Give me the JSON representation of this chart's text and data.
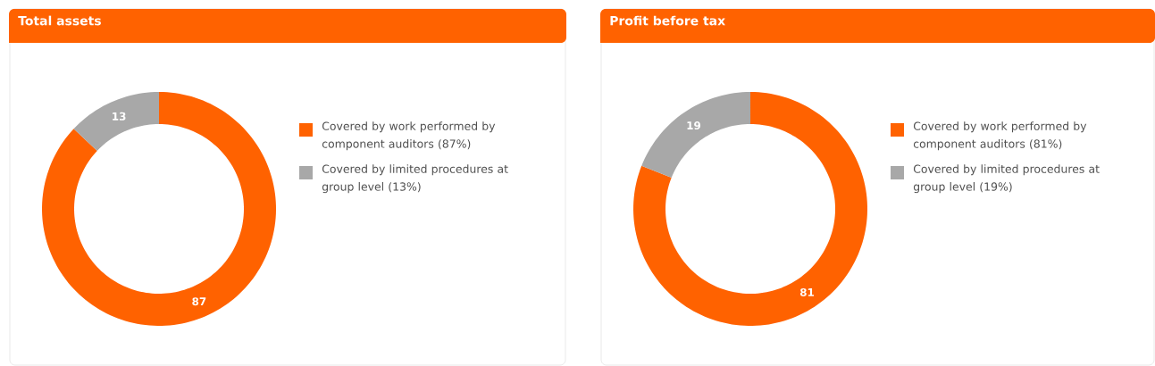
{
  "chart_data": [
    {
      "type": "donut",
      "title": "Total assets",
      "categories": [
        "Covered by work performed by component auditors (87%)",
        "Covered by limited procedures at group level (13%)"
      ],
      "values": [
        87,
        13
      ],
      "colors": [
        "#ff6200",
        "#a8a8a8"
      ],
      "data_labels": true,
      "legend": "right"
    },
    {
      "type": "donut",
      "title": "Profit before tax",
      "categories": [
        "Covered by work performed by component auditors (81%)",
        "Covered by limited procedures at group level  (19%)"
      ],
      "values": [
        81,
        19
      ],
      "colors": [
        "#ff6200",
        "#a8a8a8"
      ],
      "data_labels": true,
      "legend": "right"
    }
  ]
}
